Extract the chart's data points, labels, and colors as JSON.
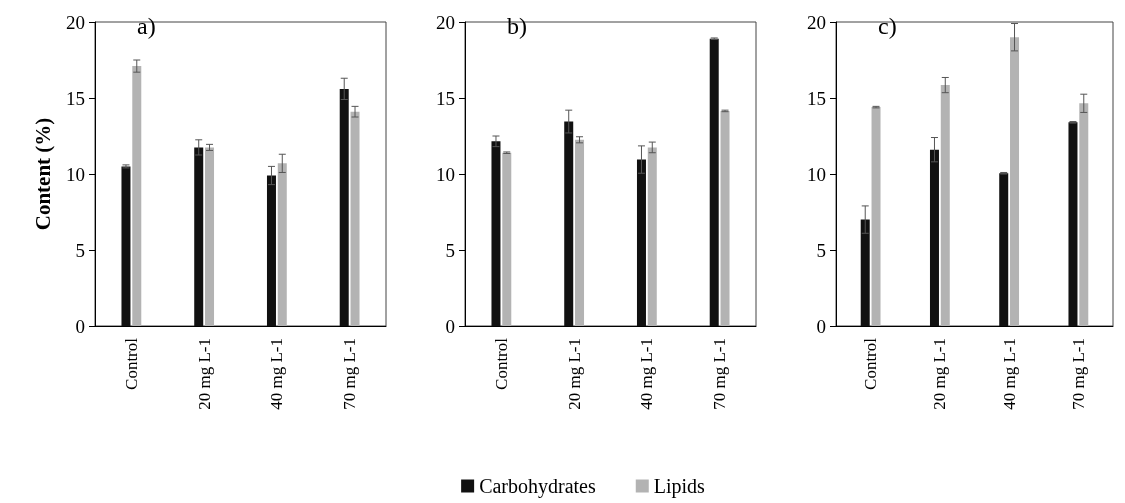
{
  "chart_data": [
    {
      "type": "bar",
      "ylabel": "Content (%)",
      "annotations": [
        "a)"
      ],
      "categories": [
        "Control",
        "20 mg L-1",
        "40 mg L-1",
        "70 mg L-1"
      ],
      "series": [
        {
          "color": "#111111",
          "values": [
            10.5,
            11.75,
            9.9,
            15.6
          ],
          "errors": [
            0.1,
            0.5,
            0.6,
            0.7
          ]
        },
        {
          "color": "#b3b3b3",
          "values": [
            17.1,
            11.75,
            10.7,
            14.1
          ],
          "errors": [
            0.4,
            0.2,
            0.6,
            0.35
          ]
        }
      ],
      "ylim": [
        0,
        20
      ],
      "yticks": [
        0,
        5,
        10,
        15,
        20
      ],
      "grid": false,
      "legend": false
    },
    {
      "type": "bar",
      "annotations": [
        "b)"
      ],
      "categories": [
        "Control",
        "20 mg L-1",
        "40 mg L-1",
        "70 mg L-1"
      ],
      "series": [
        {
          "name": "Carbohydrates",
          "color": "#111111",
          "values": [
            12.15,
            13.45,
            10.95,
            18.9
          ],
          "errors": [
            0.35,
            0.75,
            0.9,
            0.05
          ]
        },
        {
          "name": "Lipids",
          "color": "#b3b3b3",
          "values": [
            11.4,
            12.25,
            11.75,
            14.15
          ],
          "errors": [
            0.05,
            0.2,
            0.35,
            0.05
          ]
        }
      ],
      "ylim": [
        0,
        20
      ],
      "yticks": [
        0,
        5,
        10,
        15,
        20
      ],
      "grid": false,
      "legend": "bottom"
    },
    {
      "type": "bar",
      "annotations": [
        "c)"
      ],
      "categories": [
        "Control",
        "20 mg L-1",
        "40 mg L-1",
        "70 mg L-1"
      ],
      "series": [
        {
          "color": "#111111",
          "values": [
            7.0,
            11.6,
            10.05,
            13.4
          ],
          "errors": [
            0.9,
            0.8,
            0.05,
            0.05
          ]
        },
        {
          "color": "#b3b3b3",
          "values": [
            14.4,
            15.85,
            19.0,
            14.65
          ],
          "errors": [
            0.05,
            0.5,
            0.9,
            0.6
          ]
        }
      ],
      "ylim": [
        0,
        20
      ],
      "yticks": [
        0,
        5,
        10,
        15,
        20
      ],
      "grid": false,
      "legend": false
    }
  ]
}
